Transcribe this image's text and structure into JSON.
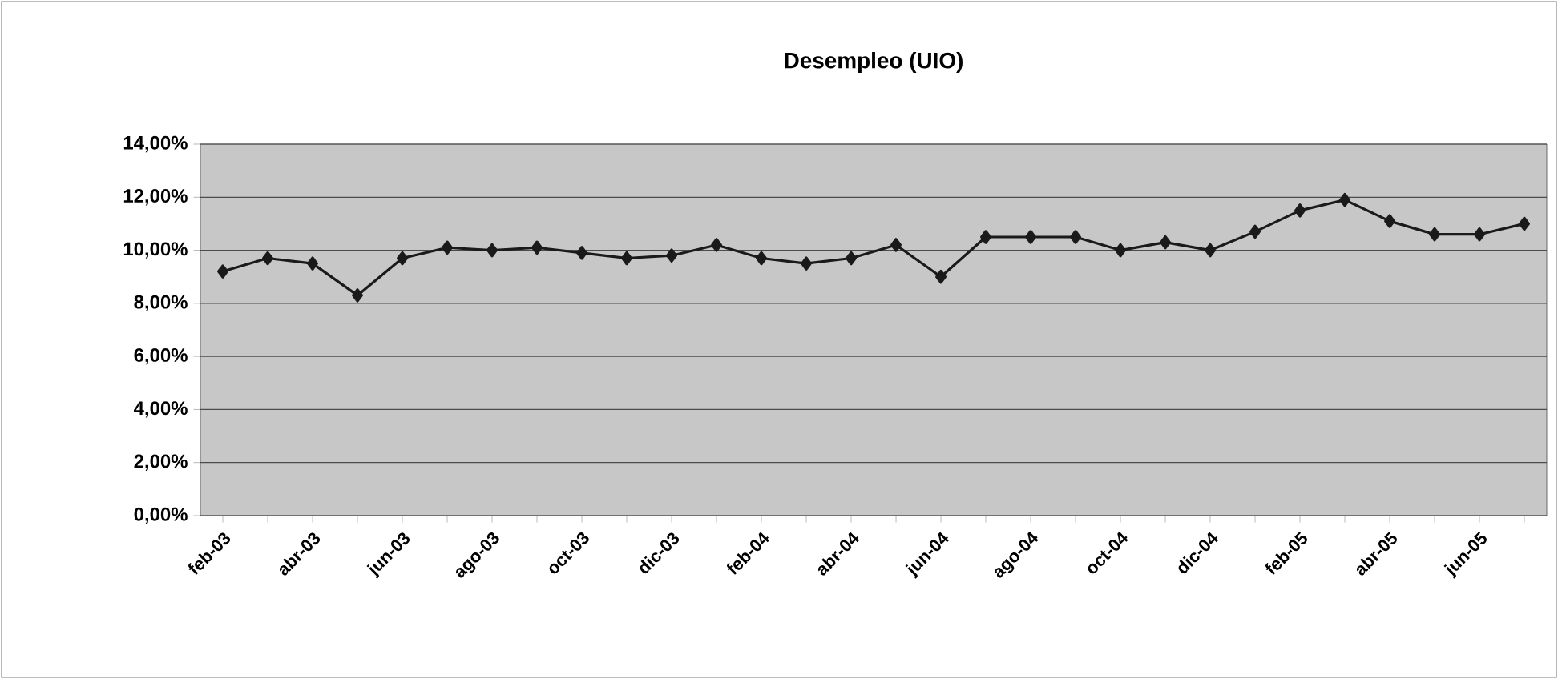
{
  "chart_data": {
    "type": "line",
    "title": "Desempleo (UIO)",
    "categories": [
      "feb-03",
      null,
      "abr-03",
      null,
      "jun-03",
      null,
      "ago-03",
      null,
      "oct-03",
      null,
      "dic-03",
      null,
      "feb-04",
      null,
      "abr-04",
      null,
      "jun-04",
      null,
      "ago-04",
      null,
      "oct-04",
      null,
      "dic-04",
      null,
      "feb-05",
      null,
      "abr-05",
      null,
      "jun-05",
      null
    ],
    "series": [
      {
        "color": "#1a1a1a",
        "values": [
          9.2,
          9.7,
          9.5,
          8.3,
          9.7,
          10.1,
          10.0,
          10.1,
          9.9,
          9.7,
          9.8,
          10.2,
          9.7,
          9.5,
          9.7,
          10.2,
          9.0,
          10.5,
          10.5,
          10.5,
          10.0,
          10.3,
          10.0,
          10.7,
          11.5,
          11.9,
          11.1,
          10.6,
          10.6,
          11.0
        ]
      }
    ],
    "ylim": [
      0,
      14
    ],
    "yticks": [
      {
        "value": 0,
        "label": "0,00%"
      },
      {
        "value": 2,
        "label": "2,00%"
      },
      {
        "value": 4,
        "label": "4,00%"
      },
      {
        "value": 6,
        "label": "6,00%"
      },
      {
        "value": 8,
        "label": "8,00%"
      },
      {
        "value": 10,
        "label": "10,00%"
      },
      {
        "value": 12,
        "label": "12,00%"
      },
      {
        "value": 14,
        "label": "14,00%"
      }
    ],
    "grid": "y",
    "marker": "diamond"
  }
}
